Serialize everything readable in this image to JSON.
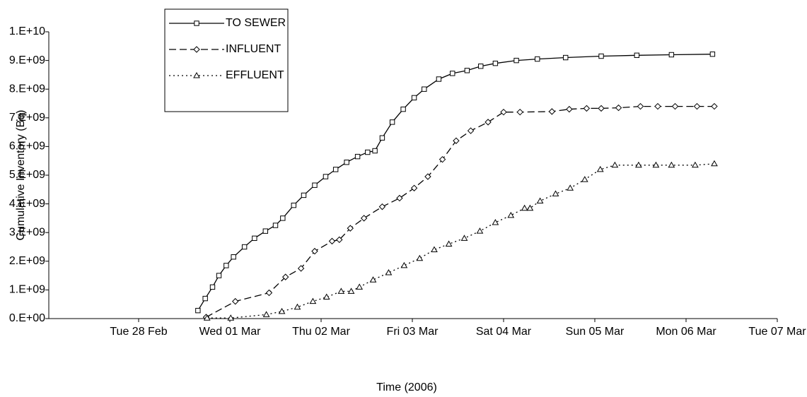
{
  "chart_data": {
    "type": "line",
    "y_label": "Cumulative Inventory (Bq)",
    "x_label": "Time (2006)",
    "xlim": [
      -1,
      7
    ],
    "xticks": [
      {
        "value": 0,
        "label": "Tue 28 Feb"
      },
      {
        "value": 1,
        "label": "Wed 01 Mar"
      },
      {
        "value": 2,
        "label": "Thu 02 Mar"
      },
      {
        "value": 3,
        "label": "Fri 03 Mar"
      },
      {
        "value": 4,
        "label": "Sat 04 Mar"
      },
      {
        "value": 5,
        "label": "Sun 05 Mar"
      },
      {
        "value": 6,
        "label": "Mon 06 Mar"
      },
      {
        "value": 7,
        "label": "Tue 07 Mar"
      }
    ],
    "ylim": [
      0,
      10000000000.0
    ],
    "yticks": [
      {
        "value": 0,
        "label": "0.E+00"
      },
      {
        "value": 1000000000.0,
        "label": "1.E+09"
      },
      {
        "value": 2000000000.0,
        "label": "2.E+09"
      },
      {
        "value": 3000000000.0,
        "label": "3.E+09"
      },
      {
        "value": 4000000000.0,
        "label": "4.E+09"
      },
      {
        "value": 5000000000.0,
        "label": "5.E+09"
      },
      {
        "value": 6000000000.0,
        "label": "6.E+09"
      },
      {
        "value": 7000000000.0,
        "label": "7.E+09"
      },
      {
        "value": 8000000000.0,
        "label": "8.E+09"
      },
      {
        "value": 9000000000.0,
        "label": "9.E+09"
      },
      {
        "value": 10000000000.0,
        "label": "1.E+10"
      }
    ],
    "legend": "upper left",
    "series": [
      {
        "name": "TO SEWER",
        "color": "#000000",
        "marker": "square",
        "dash": "solid",
        "x": [
          0.65,
          0.73,
          0.81,
          0.88,
          0.96,
          1.04,
          1.16,
          1.27,
          1.39,
          1.5,
          1.58,
          1.7,
          1.81,
          1.93,
          2.05,
          2.16,
          2.28,
          2.4,
          2.51,
          2.59,
          2.67,
          2.78,
          2.9,
          3.02,
          3.13,
          3.29,
          3.44,
          3.6,
          3.75,
          3.91,
          4.14,
          4.37,
          4.68,
          5.07,
          5.46,
          5.84,
          6.29
        ],
        "values": [
          280000000.0,
          700000000.0,
          1100000000.0,
          1500000000.0,
          1850000000.0,
          2150000000.0,
          2500000000.0,
          2800000000.0,
          3050000000.0,
          3250000000.0,
          3500000000.0,
          3950000000.0,
          4300000000.0,
          4650000000.0,
          4950000000.0,
          5200000000.0,
          5450000000.0,
          5650000000.0,
          5800000000.0,
          5850000000.0,
          6300000000.0,
          6850000000.0,
          7300000000.0,
          7700000000.0,
          8000000000.0,
          8350000000.0,
          8550000000.0,
          8650000000.0,
          8800000000.0,
          8900000000.0,
          9000000000.0,
          9050000000.0,
          9100000000.0,
          9150000000.0,
          9180000000.0,
          9200000000.0,
          9220000000.0
        ]
      },
      {
        "name": "INFLUENT",
        "color": "#000000",
        "marker": "diamond",
        "dash": "long",
        "x": [
          0.74,
          1.06,
          1.43,
          1.61,
          1.78,
          1.93,
          2.12,
          2.2,
          2.32,
          2.47,
          2.67,
          2.86,
          3.02,
          3.17,
          3.33,
          3.48,
          3.64,
          3.83,
          4.0,
          4.18,
          4.53,
          4.72,
          4.91,
          5.07,
          5.26,
          5.5,
          5.69,
          5.88,
          6.12,
          6.31
        ],
        "values": [
          50000000.0,
          600000000.0,
          900000000.0,
          1450000000.0,
          1750000000.0,
          2350000000.0,
          2700000000.0,
          2750000000.0,
          3150000000.0,
          3500000000.0,
          3900000000.0,
          4200000000.0,
          4550000000.0,
          4950000000.0,
          5550000000.0,
          6200000000.0,
          6550000000.0,
          6850000000.0,
          7200000000.0,
          7200000000.0,
          7220000000.0,
          7300000000.0,
          7330000000.0,
          7330000000.0,
          7350000000.0,
          7400000000.0,
          7400000000.0,
          7400000000.0,
          7400000000.0,
          7400000000.0
        ]
      },
      {
        "name": "EFFLUENT",
        "color": "#000000",
        "marker": "triangle",
        "dash": "dotted",
        "x": [
          0.75,
          1.01,
          1.4,
          1.57,
          1.74,
          1.91,
          2.06,
          2.22,
          2.33,
          2.42,
          2.57,
          2.74,
          2.91,
          3.08,
          3.24,
          3.4,
          3.57,
          3.74,
          3.91,
          4.08,
          4.23,
          4.29,
          4.4,
          4.57,
          4.73,
          4.89,
          5.06,
          5.22,
          5.48,
          5.67,
          5.84,
          6.1,
          6.31
        ],
        "values": [
          20000000.0,
          20000000.0,
          140000000.0,
          250000000.0,
          400000000.0,
          600000000.0,
          750000000.0,
          950000000.0,
          950000000.0,
          1100000000.0,
          1350000000.0,
          1600000000.0,
          1850000000.0,
          2100000000.0,
          2400000000.0,
          2600000000.0,
          2800000000.0,
          3050000000.0,
          3350000000.0,
          3600000000.0,
          3850000000.0,
          3850000000.0,
          4100000000.0,
          4350000000.0,
          4550000000.0,
          4850000000.0,
          5200000000.0,
          5350000000.0,
          5350000000.0,
          5350000000.0,
          5350000000.0,
          5350000000.0,
          5400000000.0
        ]
      }
    ]
  }
}
